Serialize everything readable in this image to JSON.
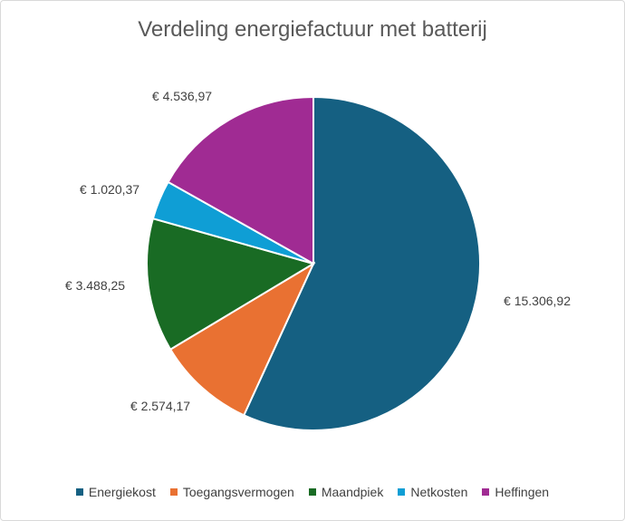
{
  "chart_data": {
    "type": "pie",
    "title": "Verdeling energiefactuur met batterij",
    "categories": [
      "Energiekost",
      "Toegangsvermogen",
      "Maandpiek",
      "Netkosten",
      "Heffingen"
    ],
    "values": [
      15306.92,
      2574.17,
      3488.25,
      1020.37,
      4536.97
    ],
    "data_labels": [
      "€ 15.306,92",
      "€ 2.574,17",
      "€ 3.488,25",
      "€ 1.020,37",
      "€ 4.536,97"
    ],
    "colors": [
      "#156082",
      "#E97132",
      "#196B24",
      "#0F9ED5",
      "#A02B93"
    ],
    "legend_position": "bottom",
    "start_angle": "12 o'clock",
    "direction": "clockwise"
  }
}
